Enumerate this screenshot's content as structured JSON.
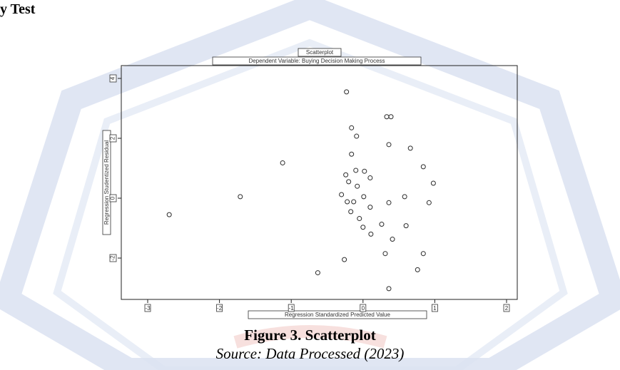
{
  "page": {
    "section_heading": "y Test",
    "figure_caption": "Figure 3. Scatterplot",
    "source_caption": "Source: Data Processed (2023)"
  },
  "chart_data": {
    "type": "scatter",
    "title": "Scatterplot",
    "subtitle": "Dependent Variable: Buying Decision Making Process",
    "xlabel": "Regression Standardized Predicted Value",
    "ylabel": "Regression Studentized Residual",
    "xlim": [
      -3,
      2
    ],
    "ylim": [
      -3,
      4
    ],
    "x_ticks": [
      -3,
      -2,
      -1,
      0,
      1,
      2
    ],
    "y_ticks": [
      -2,
      0,
      2,
      4
    ],
    "x_tick_labels": [
      "-3",
      "-2",
      "-1",
      "0",
      "1",
      "2"
    ],
    "y_tick_labels": [
      "-2",
      "0",
      "2",
      "4"
    ],
    "grid": false,
    "marker": "circle-open",
    "points": [
      {
        "x": -2.7,
        "y": -0.55
      },
      {
        "x": -1.71,
        "y": 0.05
      },
      {
        "x": -1.12,
        "y": 1.18
      },
      {
        "x": -0.63,
        "y": -2.49
      },
      {
        "x": -0.23,
        "y": 3.55
      },
      {
        "x": -0.16,
        "y": 2.35
      },
      {
        "x": -0.09,
        "y": 2.07
      },
      {
        "x": -0.16,
        "y": 1.47
      },
      {
        "x": -0.24,
        "y": 0.78
      },
      {
        "x": -0.1,
        "y": 0.93
      },
      {
        "x": 0.02,
        "y": 0.9
      },
      {
        "x": -0.2,
        "y": 0.55
      },
      {
        "x": -0.08,
        "y": 0.4
      },
      {
        "x": 0.1,
        "y": 0.68
      },
      {
        "x": -0.3,
        "y": 0.12
      },
      {
        "x": 0.01,
        "y": 0.05
      },
      {
        "x": -0.22,
        "y": -0.12
      },
      {
        "x": 0.1,
        "y": -0.3
      },
      {
        "x": -0.17,
        "y": -0.45
      },
      {
        "x": -0.05,
        "y": -0.68
      },
      {
        "x": 0.0,
        "y": -0.97
      },
      {
        "x": 0.11,
        "y": -1.2
      },
      {
        "x": -0.13,
        "y": -0.12
      },
      {
        "x": -0.26,
        "y": -2.05
      },
      {
        "x": 0.33,
        "y": 2.72
      },
      {
        "x": 0.39,
        "y": 2.72
      },
      {
        "x": 0.36,
        "y": 1.79
      },
      {
        "x": 0.36,
        "y": -0.15
      },
      {
        "x": 0.26,
        "y": -0.87
      },
      {
        "x": 0.41,
        "y": -1.37
      },
      {
        "x": 0.31,
        "y": -1.85
      },
      {
        "x": 0.36,
        "y": -3.02
      },
      {
        "x": 0.66,
        "y": 1.67
      },
      {
        "x": 0.84,
        "y": 1.05
      },
      {
        "x": 0.98,
        "y": 0.5
      },
      {
        "x": 0.58,
        "y": 0.05
      },
      {
        "x": 0.92,
        "y": -0.15
      },
      {
        "x": 0.6,
        "y": -0.92
      },
      {
        "x": 0.84,
        "y": -1.85
      },
      {
        "x": 0.76,
        "y": -2.39
      }
    ]
  },
  "colors": {
    "axis": "#222222",
    "marker": "#2a2a2a",
    "watermark": "#9eb0d8",
    "watermark_fill": "#e7ecf7",
    "watermark_accent": "#f1c7c3"
  }
}
